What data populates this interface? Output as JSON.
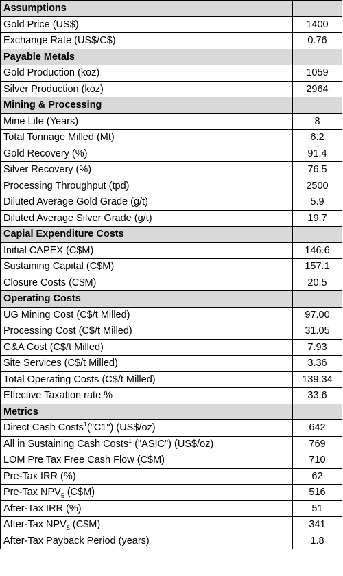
{
  "sections": [
    {
      "title": "Assumptions",
      "rows": [
        {
          "label": "Gold Price (US$)",
          "value": "1400"
        },
        {
          "label": "Exchange Rate (US$/C$)",
          "value": "0.76"
        }
      ]
    },
    {
      "title": "Payable Metals",
      "rows": [
        {
          "label": "Gold Production (koz)",
          "value": "1059"
        },
        {
          "label": "Silver Production  (koz)",
          "value": "2964"
        }
      ]
    },
    {
      "title": "Mining & Processing",
      "rows": [
        {
          "label": "Mine Life (Years)",
          "value": "8"
        },
        {
          "label": "Total Tonnage Milled (Mt)",
          "value": "6.2"
        },
        {
          "label": "Gold Recovery (%)",
          "value": "91.4"
        },
        {
          "label": "Silver Recovery (%)",
          "value": "76.5"
        },
        {
          "label": "Processing Throughput (tpd)",
          "value": "2500"
        },
        {
          "label": "Diluted Average Gold Grade (g/t)",
          "value": "5.9"
        },
        {
          "label": "Diluted Average Silver Grade (g/t)",
          "value": "19.7"
        }
      ]
    },
    {
      "title": "Capial Expenditure Costs",
      "rows": [
        {
          "label": "Initial CAPEX (C$M)",
          "value": "146.6"
        },
        {
          "label": "Sustaining Capital (C$M)",
          "value": "157.1"
        },
        {
          "label": "Closure Costs (C$M)",
          "value": "20.5"
        }
      ]
    },
    {
      "title": "Operating Costs",
      "rows": [
        {
          "label": "UG Mining Cost (C$/t Milled)",
          "value": "97.00"
        },
        {
          "label": "Processing Cost (C$/t Milled)",
          "value": "31.05"
        },
        {
          "label": "G&A Cost (C$/t Milled)",
          "value": "7.93"
        },
        {
          "label": "Site Services (C$/t Milled)",
          "value": "3.36"
        },
        {
          "label": "Total Operating Costs (C$/t Milled)",
          "value": "139.34"
        },
        {
          "label": "Effective Taxation rate  %",
          "value": "33.6"
        }
      ]
    },
    {
      "title": "Metrics",
      "rows": [
        {
          "label": "Direct Cash Costs",
          "sup": "1",
          "label_after": "(\"C1\") (US$/oz)",
          "value": "642"
        },
        {
          "label": "All in Sustaining  Cash Costs",
          "sup": "1",
          "label_after": " (\"ASIC\") (US$/oz)",
          "value": "769"
        },
        {
          "label": "LOM Pre Tax Free Cash Flow (C$M)",
          "value": "710"
        },
        {
          "label": "Pre-Tax IRR (%)",
          "value": "62"
        },
        {
          "label": "Pre-Tax NPV",
          "sub": "5",
          "label_after": " (C$M)",
          "value": "516"
        },
        {
          "label": "After-Tax IRR (%)",
          "value": "51"
        },
        {
          "label": "After-Tax NPV",
          "sub": "5",
          "label_after": " (C$M)",
          "value": "341"
        },
        {
          "label": "After-Tax Payback Period (years)",
          "value": "1.8"
        }
      ]
    }
  ]
}
